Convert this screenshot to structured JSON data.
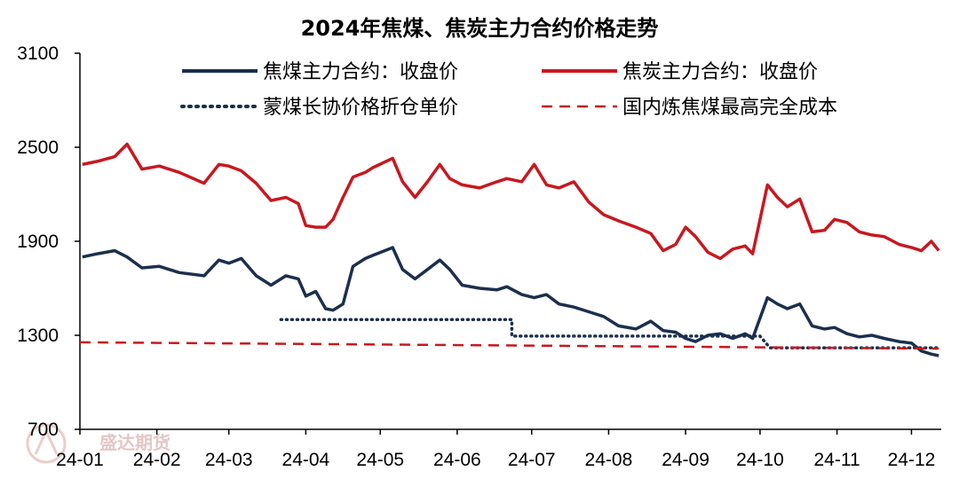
{
  "chart_data": {
    "type": "line",
    "title": "2024年焦煤、焦炭主力合约价格走势",
    "xlabel": "",
    "ylabel": "",
    "ylim": [
      700,
      3100
    ],
    "yticks": [
      700,
      1300,
      1900,
      2500,
      3100
    ],
    "xticks": [
      "24-01",
      "24-02",
      "24-03",
      "24-04",
      "24-05",
      "24-06",
      "24-07",
      "24-08",
      "24-09",
      "24-10",
      "24-11",
      "24-12"
    ],
    "grid": false,
    "legend_position": "top",
    "series": [
      {
        "name": "焦煤主力合约：收盘价",
        "style": "solid",
        "color": "#1b2f4e",
        "x": [
          "24-01-02",
          "24-01-08",
          "24-01-15",
          "24-01-20",
          "24-01-26",
          "24-02-02",
          "24-02-10",
          "24-02-20",
          "24-02-26",
          "24-03-01",
          "24-03-06",
          "24-03-12",
          "24-03-18",
          "24-03-24",
          "24-03-29",
          "24-04-01",
          "24-04-05",
          "24-04-09",
          "24-04-12",
          "24-04-16",
          "24-04-20",
          "24-04-25",
          "24-04-28",
          "24-05-06",
          "24-05-10",
          "24-05-15",
          "24-05-20",
          "24-05-25",
          "24-05-29",
          "24-06-03",
          "24-06-10",
          "24-06-17",
          "24-06-21",
          "24-06-27",
          "24-07-02",
          "24-07-07",
          "24-07-12",
          "24-07-18",
          "24-07-24",
          "24-07-30",
          "24-08-05",
          "24-08-12",
          "24-08-18",
          "24-08-23",
          "24-08-28",
          "24-09-01",
          "24-09-05",
          "24-09-10",
          "24-09-15",
          "24-09-20",
          "24-09-25",
          "24-09-28",
          "24-10-04",
          "24-10-08",
          "24-10-12",
          "24-10-17",
          "24-10-22",
          "24-10-27",
          "24-10-31",
          "24-11-05",
          "24-11-10",
          "24-11-15",
          "24-11-20",
          "24-11-26",
          "24-12-01",
          "24-12-05",
          "24-12-09",
          "24-12-12"
        ],
        "y": [
          1800,
          1820,
          1840,
          1800,
          1730,
          1740,
          1700,
          1680,
          1780,
          1760,
          1790,
          1680,
          1620,
          1680,
          1660,
          1550,
          1580,
          1470,
          1460,
          1500,
          1740,
          1790,
          1810,
          1860,
          1720,
          1660,
          1720,
          1780,
          1720,
          1620,
          1600,
          1590,
          1610,
          1560,
          1540,
          1560,
          1500,
          1480,
          1450,
          1420,
          1360,
          1340,
          1390,
          1330,
          1320,
          1280,
          1260,
          1300,
          1310,
          1280,
          1310,
          1280,
          1540,
          1500,
          1470,
          1500,
          1360,
          1340,
          1350,
          1310,
          1290,
          1300,
          1280,
          1260,
          1250,
          1200,
          1180,
          1170
        ]
      },
      {
        "name": "焦炭主力合约：收盘价",
        "style": "solid",
        "color": "#c8181e",
        "x": [
          "24-01-02",
          "24-01-08",
          "24-01-15",
          "24-01-20",
          "24-01-26",
          "24-02-02",
          "24-02-10",
          "24-02-20",
          "24-02-26",
          "24-03-01",
          "24-03-06",
          "24-03-12",
          "24-03-18",
          "24-03-24",
          "24-03-29",
          "24-04-01",
          "24-04-05",
          "24-04-09",
          "24-04-12",
          "24-04-16",
          "24-04-20",
          "24-04-25",
          "24-04-28",
          "24-05-06",
          "24-05-10",
          "24-05-15",
          "24-05-20",
          "24-05-25",
          "24-05-29",
          "24-06-03",
          "24-06-10",
          "24-06-17",
          "24-06-21",
          "24-06-27",
          "24-07-02",
          "24-07-07",
          "24-07-12",
          "24-07-18",
          "24-07-24",
          "24-07-30",
          "24-08-05",
          "24-08-12",
          "24-08-18",
          "24-08-23",
          "24-08-28",
          "24-09-01",
          "24-09-05",
          "24-09-10",
          "24-09-15",
          "24-09-20",
          "24-09-25",
          "24-09-28",
          "24-10-04",
          "24-10-08",
          "24-10-12",
          "24-10-17",
          "24-10-22",
          "24-10-27",
          "24-10-31",
          "24-11-05",
          "24-11-10",
          "24-11-15",
          "24-11-20",
          "24-11-26",
          "24-12-01",
          "24-12-05",
          "24-12-09",
          "24-12-12"
        ],
        "y": [
          2390,
          2410,
          2440,
          2520,
          2360,
          2380,
          2340,
          2270,
          2390,
          2380,
          2350,
          2270,
          2160,
          2180,
          2140,
          2000,
          1990,
          1990,
          2040,
          2180,
          2310,
          2340,
          2370,
          2430,
          2280,
          2180,
          2280,
          2390,
          2300,
          2260,
          2240,
          2280,
          2300,
          2280,
          2390,
          2260,
          2240,
          2280,
          2150,
          2070,
          2030,
          1990,
          1950,
          1840,
          1880,
          1990,
          1930,
          1830,
          1790,
          1850,
          1870,
          1820,
          2260,
          2180,
          2120,
          2170,
          1960,
          1970,
          2040,
          2020,
          1960,
          1940,
          1930,
          1880,
          1860,
          1840,
          1900,
          1840
        ]
      },
      {
        "name": "蒙煤长协价格折仓单价",
        "style": "dotted",
        "color": "#1b2f4e",
        "x": [
          "24-03-22",
          "24-06-23",
          "24-06-23",
          "24-10-01",
          "24-10-05",
          "24-12-12"
        ],
        "y": [
          1400,
          1400,
          1295,
          1295,
          1220,
          1220
        ]
      },
      {
        "name": "国内炼焦煤最高完全成本",
        "style": "dashed",
        "color": "#c8181e",
        "x": [
          "24-01-01",
          "24-12-12"
        ],
        "y": [
          1255,
          1215
        ]
      }
    ]
  },
  "watermark": {
    "text": "盛达期货"
  }
}
